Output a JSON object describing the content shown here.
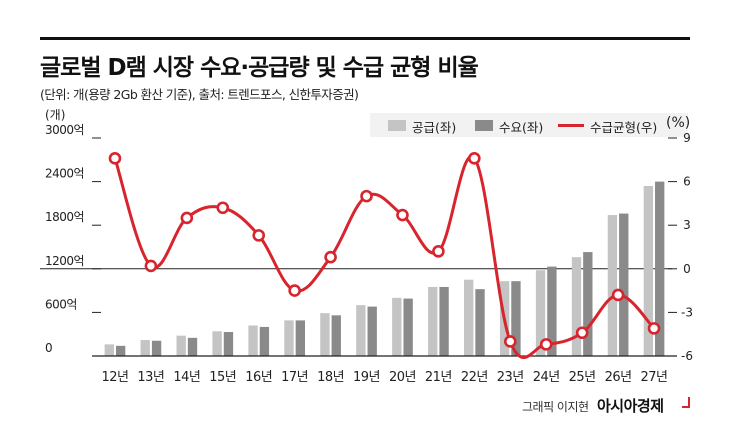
{
  "header": {
    "title": "글로벌 D램 시장 수요·공급량 및 수급 균형 비율",
    "subtitle": "(단위: 개(용량 2Gb 환산 기준), 출처: 트렌드포스, 신한투자증권)"
  },
  "legend": {
    "supply": "공급(좌)",
    "demand": "수요(좌)",
    "balance": "수급균형(우)"
  },
  "footer": {
    "credit": "그래픽 이지현",
    "brand": "아시아경제"
  },
  "colors": {
    "supply": "#c4c4c4",
    "demand": "#8a8a8a",
    "balance": "#d7242d"
  },
  "chart_data": {
    "type": "bar",
    "title": "글로벌 D램 시장 수요·공급량 및 수급 균형 비율",
    "categories": [
      "12년",
      "13년",
      "14년",
      "15년",
      "16년",
      "17년",
      "18년",
      "19년",
      "20년",
      "21년",
      "22년",
      "23년",
      "24년",
      "25년",
      "26년",
      "27년"
    ],
    "series": [
      {
        "name": "공급(좌)",
        "type": "bar",
        "axis": "left",
        "values": [
          160,
          220,
          280,
          340,
          420,
          490,
          590,
          700,
          800,
          950,
          1050,
          1030,
          1180,
          1360,
          1940,
          2340
        ]
      },
      {
        "name": "수요(좌)",
        "type": "bar",
        "axis": "left",
        "values": [
          140,
          210,
          250,
          330,
          400,
          490,
          560,
          680,
          790,
          950,
          920,
          1030,
          1230,
          1430,
          1960,
          2400
        ]
      },
      {
        "name": "수급균형(우)",
        "type": "line",
        "axis": "right",
        "values": [
          7.6,
          0.2,
          3.5,
          4.2,
          2.3,
          -1.5,
          0.8,
          5.0,
          3.7,
          1.2,
          7.6,
          -5.0,
          -5.2,
          -4.4,
          -1.8,
          -4.1
        ]
      }
    ],
    "y_left": {
      "unit": "(개)",
      "ticks": [
        0,
        600,
        1200,
        1800,
        2400,
        3000
      ],
      "tick_labels": [
        "0",
        "600억",
        "1200억",
        "1800억",
        "2400억",
        "3000억"
      ],
      "ylim": [
        0,
        3000
      ]
    },
    "y_right": {
      "unit": "(%)",
      "ticks": [
        -6,
        -3,
        0,
        3,
        6,
        9
      ],
      "tick_labels": [
        "-6",
        "-3",
        "0",
        "3",
        "6",
        "9"
      ],
      "ylim": [
        -6,
        9
      ]
    },
    "grid": false,
    "legend_position": "top-right"
  }
}
